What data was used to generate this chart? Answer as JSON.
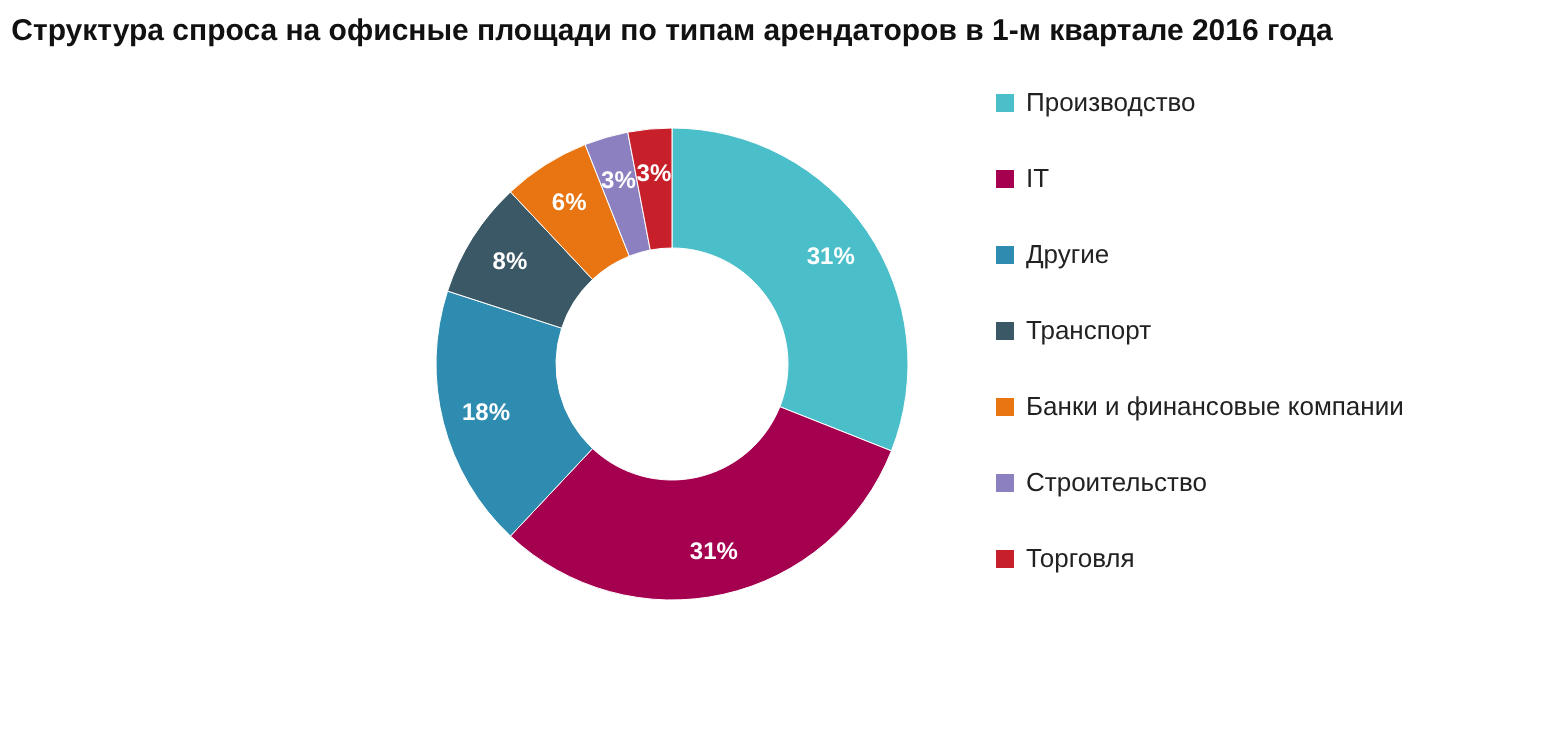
{
  "chart_data": {
    "type": "donut",
    "title": "Структура спроса на офисные площади по типам арендаторов в 1-м квартале 2016 года",
    "categories": [
      "Производство",
      "IT",
      "Другие",
      "Транспорт",
      "Банки и финансовые компании",
      "Строительство",
      "Торговля"
    ],
    "values": [
      31,
      31,
      18,
      8,
      6,
      3,
      3
    ],
    "colors": [
      "#4bbfc9",
      "#a50050",
      "#2e8cb0",
      "#3a5866",
      "#e87511",
      "#8c80c0",
      "#c8202a"
    ],
    "value_labels": [
      "31%",
      "31%",
      "18%",
      "8%",
      "6%",
      "3%",
      "3%"
    ],
    "legend": "right"
  }
}
